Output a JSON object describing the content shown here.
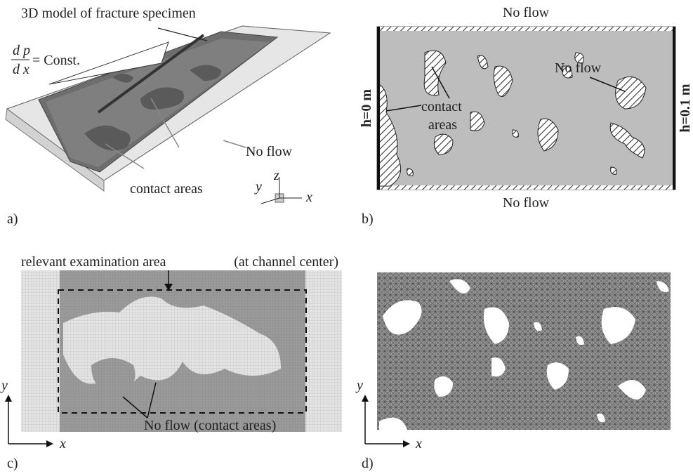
{
  "panels": {
    "a": {
      "label": "a)",
      "title": "3D model of fracture specimen",
      "numerator": "d p",
      "denominator": "d x",
      "equals": "= Const.",
      "no_flow": "No flow",
      "contact_areas": "contact areas",
      "axis_y": "y",
      "axis_z": "z",
      "axis_x": "x"
    },
    "b": {
      "label": "b)",
      "no_flow_top": "No flow",
      "no_flow_bottom": "No flow",
      "no_flow_right": "No flow",
      "contact": "contact",
      "areas": "areas",
      "h_left": "h=0 m",
      "h_right": "h=0.1 m"
    },
    "c": {
      "label": "c)",
      "title": "relevant examination area",
      "note": "(at channel center)",
      "no_flow": "No flow (contact areas)",
      "axis_y": "y",
      "axis_x": "x"
    },
    "d": {
      "label": "d)",
      "axis_y": "y",
      "axis_x": "x"
    }
  }
}
